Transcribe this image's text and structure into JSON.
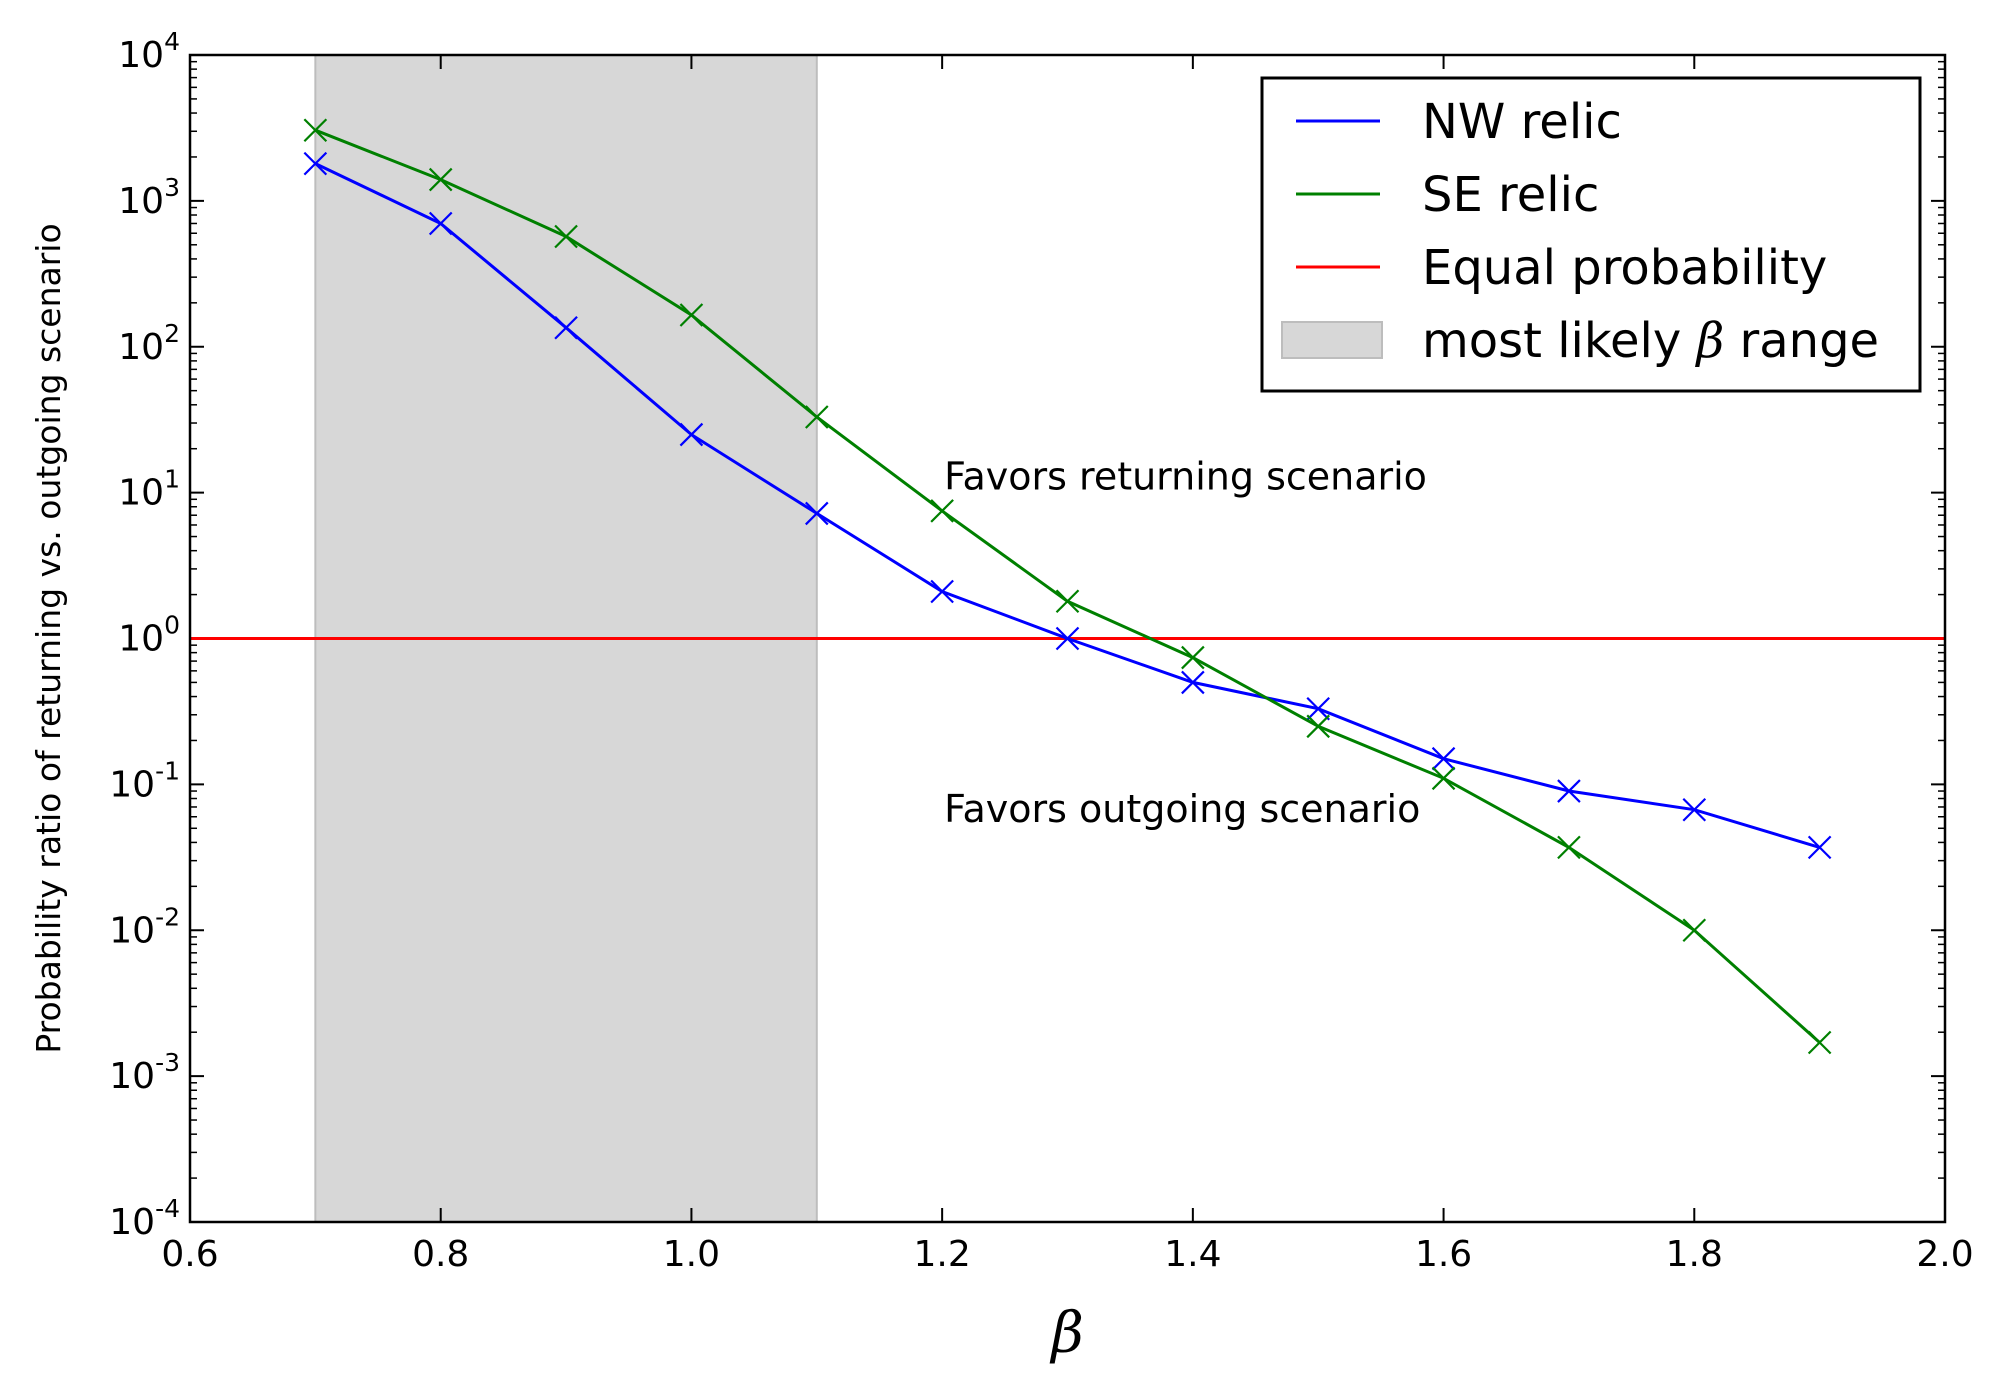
{
  "chart_data": {
    "type": "line",
    "xlabel": "β",
    "ylabel": "Probability ratio of returning vs. outgoing scenario",
    "xlim": [
      0.6,
      2.0
    ],
    "ylim_log10": [
      -4,
      4
    ],
    "yscale": "log",
    "x_ticks": [
      "0.6",
      "0.8",
      "1.0",
      "1.2",
      "1.4",
      "1.6",
      "1.8",
      "2.0"
    ],
    "y_ticks": [
      {
        "base": "10",
        "exp": "4",
        "value": 4
      },
      {
        "base": "10",
        "exp": "3",
        "value": 3
      },
      {
        "base": "10",
        "exp": "2",
        "value": 2
      },
      {
        "base": "10",
        "exp": "1",
        "value": 1
      },
      {
        "base": "10",
        "exp": "0",
        "value": 0
      },
      {
        "base": "10",
        "exp": "-1",
        "value": -1
      },
      {
        "base": "10",
        "exp": "-2",
        "value": -2
      },
      {
        "base": "10",
        "exp": "-3",
        "value": -3
      },
      {
        "base": "10",
        "exp": "-4",
        "value": -4
      }
    ],
    "x": [
      0.7,
      0.8,
      0.9,
      1.0,
      1.1,
      1.2,
      1.3,
      1.4,
      1.5,
      1.6,
      1.7,
      1.8,
      1.9
    ],
    "series": [
      {
        "name": "NW relic",
        "color": "#0000ff",
        "marker": "x",
        "values": [
          1800,
          700,
          135,
          25,
          7.2,
          2.1,
          1.0,
          0.5,
          0.33,
          0.15,
          0.09,
          0.067,
          0.037
        ]
      },
      {
        "name": "SE relic",
        "color": "#008000",
        "marker": "x",
        "values": [
          3050,
          1400,
          570,
          165,
          33,
          7.5,
          1.8,
          0.74,
          0.25,
          0.11,
          0.037,
          0.01,
          0.0017
        ]
      }
    ],
    "reference_line": {
      "name": "Equal probability",
      "y": 1,
      "color": "#ff0000"
    },
    "shaded_region": {
      "name": "most likely β range",
      "x_range": [
        0.7,
        1.1
      ],
      "color": "#d7d7d7"
    },
    "legend": {
      "placement": "top-right",
      "entries": [
        {
          "label": "NW relic",
          "kind": "line",
          "color": "#0000ff"
        },
        {
          "label": "SE relic",
          "kind": "line",
          "color": "#008000"
        },
        {
          "label": "Equal probability",
          "kind": "line",
          "color": "#ff0000"
        },
        {
          "label_prefix": "most likely ",
          "label_symbol": "β",
          "label_suffix": " range",
          "kind": "patch",
          "color": "#d7d7d7"
        }
      ]
    },
    "annotations": [
      {
        "text": "Favors returning scenario",
        "x": 1.2,
        "y": 10.5
      },
      {
        "text": "Favors outgoing scenario",
        "x": 1.2,
        "y": 0.055
      }
    ]
  }
}
